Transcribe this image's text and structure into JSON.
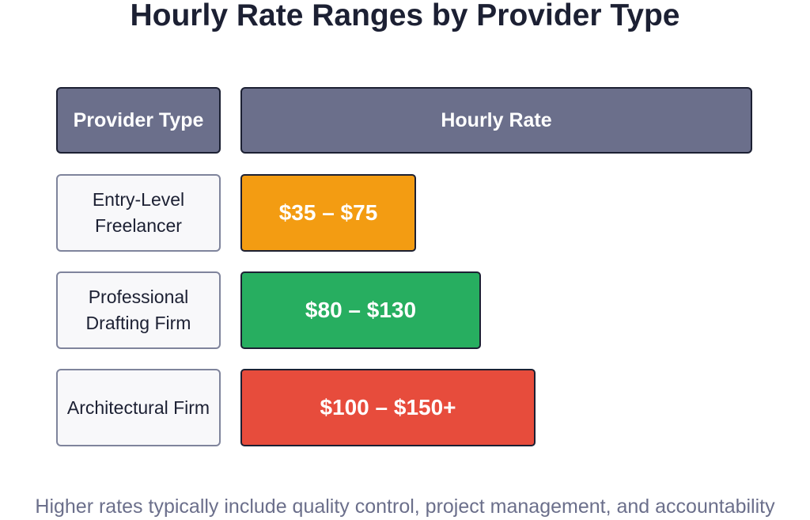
{
  "title": "Hourly Rate Ranges by Provider Type",
  "headers": {
    "provider_type": "Provider Type",
    "hourly_rate": "Hourly Rate"
  },
  "rows": [
    {
      "provider": "Entry-Level Freelancer",
      "rate": "$35 – $75",
      "color": "#f39c12"
    },
    {
      "provider": "Professional Drafting Firm",
      "rate": "$80 – $130",
      "color": "#27ae60"
    },
    {
      "provider": "Architectural Firm",
      "rate": "$100 – $150+",
      "color": "#e74c3c"
    }
  ],
  "footnote": "Higher rates typically include quality control, project management, and accountability"
}
